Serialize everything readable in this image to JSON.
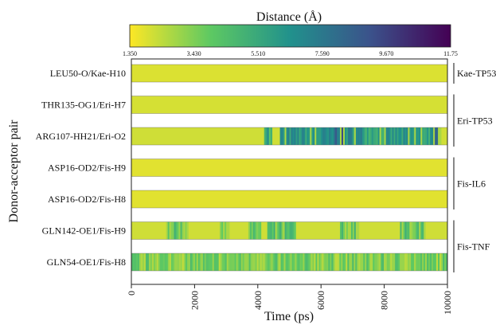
{
  "chart_data": {
    "type": "heatmap",
    "colorbar": {
      "title": "Distance (Å)",
      "min": 1.35,
      "max": 11.75,
      "ticks": [
        "1.350",
        "3.430",
        "5.510",
        "7.590",
        "9.670",
        "11.75"
      ],
      "tick_values": [
        1.35,
        3.43,
        5.51,
        7.59,
        9.67,
        11.75
      ],
      "colormap": "viridis (reversed: yellow = short, purple = long)"
    },
    "ylabel": "Donor-acceptor pair",
    "xlabel": "Time (ps)",
    "x_ticks": [
      "0",
      "2000",
      "4000",
      "6000",
      "8000",
      "10000"
    ],
    "x_tick_values": [
      0,
      2000,
      4000,
      6000,
      8000,
      10000
    ],
    "xlim": [
      0,
      10000
    ],
    "rows": [
      {
        "label": "LEU50-O/Kae-H10",
        "baseline": 1.9,
        "segments": []
      },
      {
        "label": "THR135-OG1/Eri-H7",
        "baseline": 2.0,
        "segments": []
      },
      {
        "label": "ARG107-HH21/Eri-O2",
        "baseline": 2.1,
        "segments": [
          {
            "from": 4200,
            "to": 4350,
            "value": 6.2
          },
          {
            "from": 4350,
            "to": 4450,
            "value": 4.5
          },
          {
            "from": 4700,
            "to": 6400,
            "value": 6.3
          },
          {
            "from": 6400,
            "to": 6700,
            "value": 8.2
          },
          {
            "from": 6700,
            "to": 7400,
            "value": 6.6
          },
          {
            "from": 7400,
            "to": 9600,
            "value": 6.0
          },
          {
            "from": 9600,
            "to": 9800,
            "value": 7.8
          }
        ]
      },
      {
        "label": "ASP16-OD2/Fis-H9",
        "baseline": 1.8,
        "segments": []
      },
      {
        "label": "ASP16-OD2/Fis-H8",
        "baseline": 1.8,
        "segments": []
      },
      {
        "label": "GLN142-OE1/Fis-H9",
        "baseline": 2.1,
        "segments": [
          {
            "from": 1100,
            "to": 1800,
            "value": 4.0
          },
          {
            "from": 2800,
            "to": 3100,
            "value": 3.8
          },
          {
            "from": 3700,
            "to": 4100,
            "value": 3.7
          },
          {
            "from": 4300,
            "to": 5200,
            "value": 4.1
          },
          {
            "from": 6600,
            "to": 7200,
            "value": 4.0
          },
          {
            "from": 8500,
            "to": 9300,
            "value": 4.1
          }
        ]
      },
      {
        "label": "GLN54-OE1/Fis-H8",
        "baseline": 2.4,
        "segments": [
          {
            "from": 0,
            "to": 10000,
            "value": 3.5
          }
        ]
      }
    ],
    "groups": [
      {
        "label": "Kae-TP53",
        "rows": [
          0,
          0
        ]
      },
      {
        "label": "Eri-TP53",
        "rows": [
          1,
          2
        ]
      },
      {
        "label": "Fis-IL6",
        "rows": [
          3,
          4
        ]
      },
      {
        "label": "Fis-TNF",
        "rows": [
          5,
          6
        ]
      }
    ]
  }
}
